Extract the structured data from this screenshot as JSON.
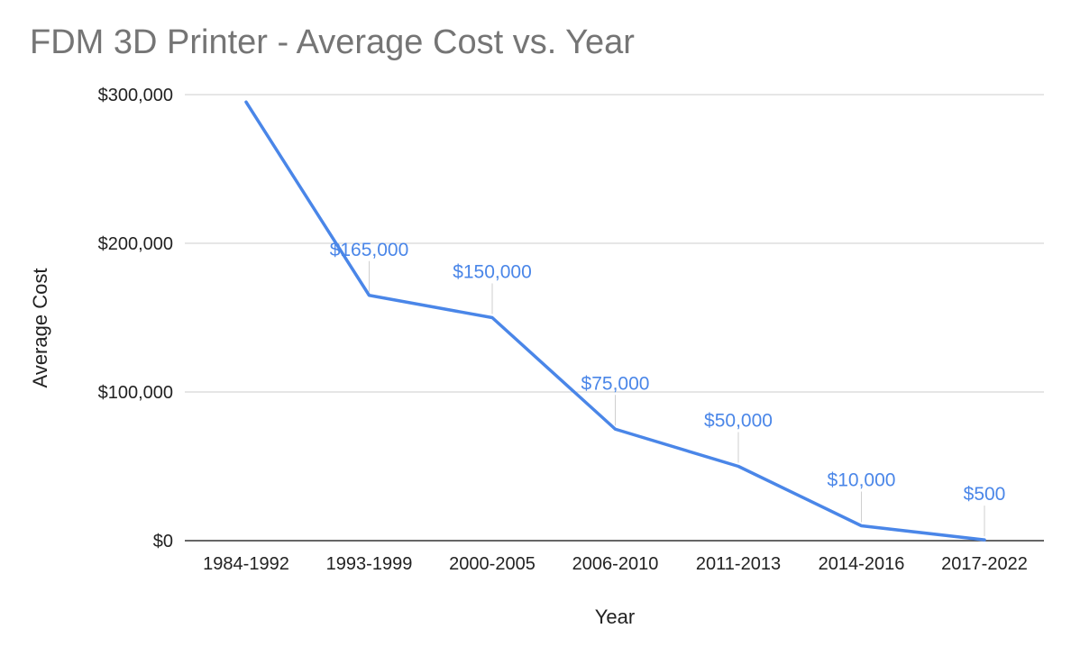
{
  "chart_data": {
    "type": "line",
    "title": "FDM 3D Printer - Average Cost vs. Year",
    "xlabel": "Year",
    "ylabel": "Average Cost",
    "categories": [
      "1984-1992",
      "1993-1999",
      "2000-2005",
      "2006-2010",
      "2011-2013",
      "2014-2016",
      "2017-2022"
    ],
    "series": [
      {
        "values": [
          295000,
          165000,
          150000,
          75000,
          50000,
          10000,
          500
        ],
        "color": "#4a86e8"
      }
    ],
    "data_labels": [
      "",
      "$165,000",
      "$150,000",
      "$75,000",
      "$50,000",
      "$10,000",
      "$500"
    ],
    "ylim": [
      0,
      300000
    ],
    "yticks": [
      0,
      100000,
      200000,
      300000
    ],
    "ytick_labels": [
      "$0",
      "$100,000",
      "$200,000",
      "$300,000"
    ],
    "grid": true,
    "legend": "none"
  }
}
